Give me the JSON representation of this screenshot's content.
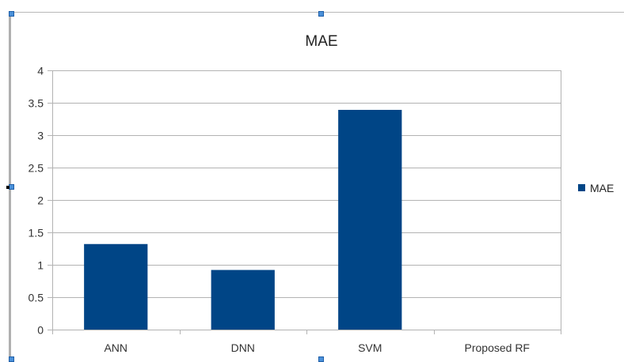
{
  "chart_data": {
    "type": "bar",
    "title": "MAE",
    "categories": [
      "ANN",
      "DNN",
      "SVM",
      "Proposed RF"
    ],
    "series": [
      {
        "name": "MAE",
        "values": [
          1.32,
          0.92,
          3.39,
          0
        ],
        "color": "#004586"
      }
    ],
    "y_ticks": [
      "0",
      "0.5",
      "1",
      "1.5",
      "2",
      "2.5",
      "3",
      "3.5",
      "4"
    ],
    "ylim": [
      0,
      4
    ],
    "grid": true,
    "legend": "right"
  }
}
